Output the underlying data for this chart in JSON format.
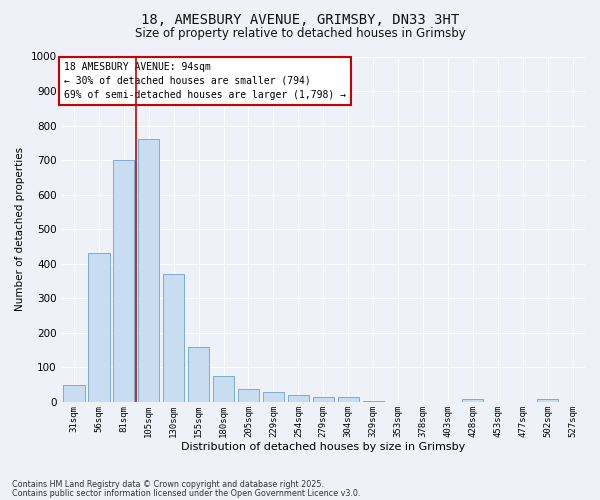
{
  "title1": "18, AMESBURY AVENUE, GRIMSBY, DN33 3HT",
  "title2": "Size of property relative to detached houses in Grimsby",
  "xlabel": "Distribution of detached houses by size in Grimsby",
  "ylabel": "Number of detached properties",
  "categories": [
    "31sqm",
    "56sqm",
    "81sqm",
    "105sqm",
    "130sqm",
    "155sqm",
    "180sqm",
    "205sqm",
    "229sqm",
    "254sqm",
    "279sqm",
    "304sqm",
    "329sqm",
    "353sqm",
    "378sqm",
    "403sqm",
    "428sqm",
    "453sqm",
    "477sqm",
    "502sqm",
    "527sqm"
  ],
  "values": [
    50,
    430,
    700,
    760,
    370,
    158,
    75,
    38,
    30,
    20,
    15,
    15,
    3,
    0,
    0,
    0,
    8,
    0,
    0,
    8,
    0
  ],
  "bar_color": "#c8ddf0",
  "bar_edge_color": "#7aadd4",
  "vline_x": 2.5,
  "vline_color": "#cc0000",
  "annotation_text": "18 AMESBURY AVENUE: 94sqm\n← 30% of detached houses are smaller (794)\n69% of semi-detached houses are larger (1,798) →",
  "annotation_box_facecolor": "#ffffff",
  "annotation_box_edgecolor": "#cc0000",
  "bg_color": "#eef2f8",
  "grid_color": "#ffffff",
  "footer1": "Contains HM Land Registry data © Crown copyright and database right 2025.",
  "footer2": "Contains public sector information licensed under the Open Government Licence v3.0.",
  "ylim": [
    0,
    1000
  ],
  "yticks": [
    0,
    100,
    200,
    300,
    400,
    500,
    600,
    700,
    800,
    900,
    1000
  ]
}
